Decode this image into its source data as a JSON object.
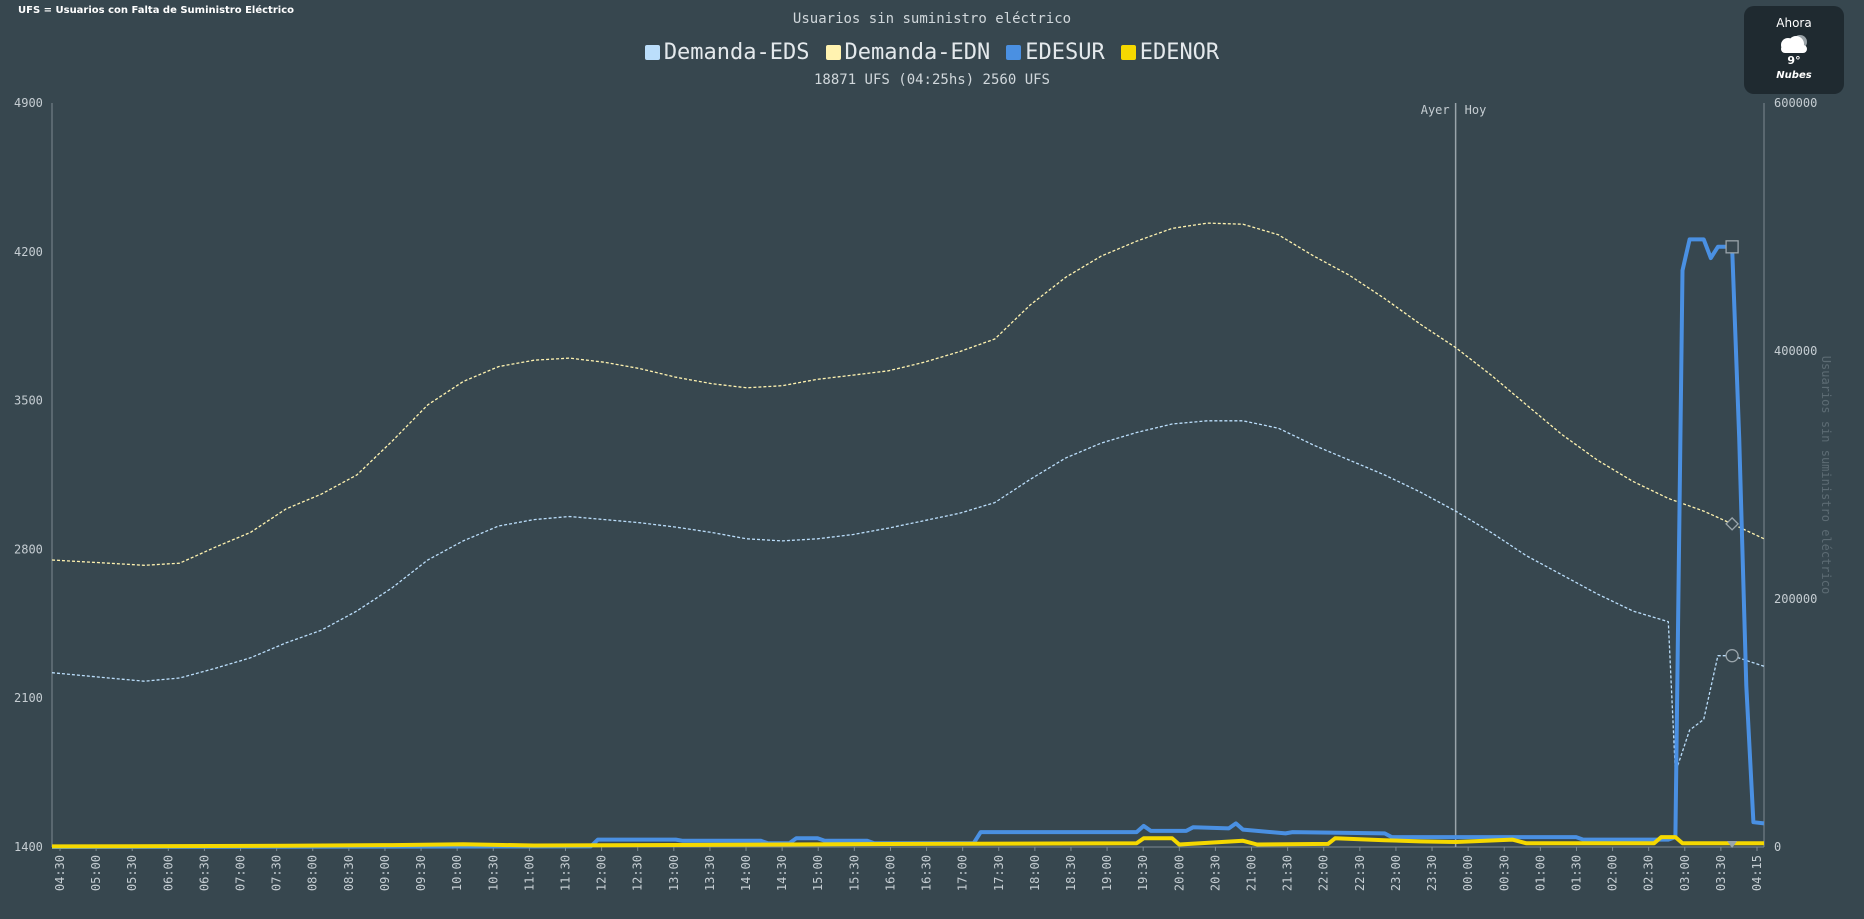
{
  "header": {
    "corner_note": "UFS = Usuarios con Falta de Suministro Eléctrico",
    "title": "Usuarios sin suministro eléctrico",
    "subtitle": "18871 UFS (04:25hs) 2560 UFS"
  },
  "legend": [
    {
      "label": "Demanda-EDS",
      "color": "#bbdefb"
    },
    {
      "label": "Demanda-EDN",
      "color": "#fff3b0"
    },
    {
      "label": "EDESUR",
      "color": "#4a90e2"
    },
    {
      "label": "EDENOR",
      "color": "#f5d800"
    }
  ],
  "weather": {
    "label": "Ahora",
    "icon": "cloud-icon",
    "temp": "9°",
    "desc": "Nubes"
  },
  "chart_data": {
    "type": "line",
    "title": "Usuarios sin suministro eléctrico",
    "subtitle": "18871 UFS (04:25hs) 2560 UFS",
    "x_ticks": [
      "04:30",
      "05:00",
      "05:30",
      "06:00",
      "06:30",
      "07:00",
      "07:30",
      "08:00",
      "08:30",
      "09:00",
      "09:30",
      "10:00",
      "10:30",
      "11:00",
      "11:30",
      "12:00",
      "12:30",
      "13:00",
      "13:30",
      "14:00",
      "14:30",
      "15:00",
      "15:30",
      "16:00",
      "16:30",
      "17:00",
      "17:30",
      "18:00",
      "18:30",
      "19:00",
      "19:30",
      "20:00",
      "20:30",
      "21:00",
      "21:30",
      "22:00",
      "22:30",
      "23:00",
      "23:30",
      "00:00",
      "00:30",
      "01:00",
      "01:30",
      "02:00",
      "02:30",
      "03:00",
      "03:30",
      "04:15"
    ],
    "x_range_hours": [
      4.2,
      28.35
    ],
    "left_axis": {
      "ticks": [
        1400,
        2100,
        2800,
        3500,
        4200,
        4900
      ],
      "range": [
        1400,
        4900
      ],
      "label": ""
    },
    "right_axis": {
      "ticks": [
        0,
        200000,
        400000,
        600000
      ],
      "range": [
        0,
        600000
      ],
      "label": "Usuarios sin suministro eléctrico"
    },
    "day_marker": {
      "x_hours": 24.0,
      "left_label": "Ayer",
      "right_label": "Hoy"
    },
    "grid": false,
    "legend_position": "top-center",
    "series": [
      {
        "name": "Demanda-EDN",
        "axis": "left",
        "style": "dashed",
        "color": "#fff3b0",
        "points": [
          [
            4.2,
            2750
          ],
          [
            5.0,
            2735
          ],
          [
            5.5,
            2725
          ],
          [
            6.0,
            2735
          ],
          [
            6.5,
            2810
          ],
          [
            7.0,
            2880
          ],
          [
            7.5,
            2990
          ],
          [
            8.0,
            3060
          ],
          [
            8.5,
            3150
          ],
          [
            9.0,
            3310
          ],
          [
            9.5,
            3480
          ],
          [
            10.0,
            3590
          ],
          [
            10.5,
            3660
          ],
          [
            11.0,
            3690
          ],
          [
            11.5,
            3700
          ],
          [
            12.0,
            3680
          ],
          [
            12.5,
            3650
          ],
          [
            13.0,
            3610
          ],
          [
            13.5,
            3580
          ],
          [
            14.0,
            3560
          ],
          [
            14.5,
            3570
          ],
          [
            15.0,
            3600
          ],
          [
            15.5,
            3620
          ],
          [
            16.0,
            3640
          ],
          [
            16.5,
            3680
          ],
          [
            17.0,
            3730
          ],
          [
            17.5,
            3790
          ],
          [
            18.0,
            3950
          ],
          [
            18.5,
            4080
          ],
          [
            19.0,
            4180
          ],
          [
            19.5,
            4250
          ],
          [
            20.0,
            4310
          ],
          [
            20.5,
            4335
          ],
          [
            21.0,
            4330
          ],
          [
            21.5,
            4280
          ],
          [
            22.0,
            4180
          ],
          [
            22.5,
            4090
          ],
          [
            23.0,
            3980
          ],
          [
            23.5,
            3860
          ],
          [
            24.0,
            3750
          ],
          [
            24.5,
            3620
          ],
          [
            25.0,
            3480
          ],
          [
            25.5,
            3340
          ],
          [
            26.0,
            3220
          ],
          [
            26.5,
            3120
          ],
          [
            27.0,
            3040
          ],
          [
            27.5,
            2980
          ],
          [
            27.9,
            2920
          ],
          [
            28.35,
            2850
          ]
        ]
      },
      {
        "name": "Demanda-EDS",
        "axis": "left",
        "style": "dashed",
        "color": "#bbdefb",
        "points": [
          [
            4.2,
            2220
          ],
          [
            5.0,
            2195
          ],
          [
            5.5,
            2180
          ],
          [
            6.0,
            2195
          ],
          [
            6.5,
            2240
          ],
          [
            7.0,
            2290
          ],
          [
            7.5,
            2360
          ],
          [
            8.0,
            2420
          ],
          [
            8.5,
            2510
          ],
          [
            9.0,
            2620
          ],
          [
            9.5,
            2750
          ],
          [
            10.0,
            2840
          ],
          [
            10.5,
            2910
          ],
          [
            11.0,
            2940
          ],
          [
            11.5,
            2955
          ],
          [
            12.0,
            2940
          ],
          [
            12.5,
            2925
          ],
          [
            13.0,
            2905
          ],
          [
            13.5,
            2880
          ],
          [
            14.0,
            2850
          ],
          [
            14.5,
            2840
          ],
          [
            15.0,
            2850
          ],
          [
            15.5,
            2870
          ],
          [
            16.0,
            2900
          ],
          [
            16.5,
            2935
          ],
          [
            17.0,
            2970
          ],
          [
            17.5,
            3020
          ],
          [
            18.0,
            3130
          ],
          [
            18.5,
            3230
          ],
          [
            19.0,
            3300
          ],
          [
            19.5,
            3350
          ],
          [
            20.0,
            3390
          ],
          [
            20.5,
            3405
          ],
          [
            21.0,
            3405
          ],
          [
            21.5,
            3370
          ],
          [
            22.0,
            3290
          ],
          [
            22.5,
            3220
          ],
          [
            23.0,
            3150
          ],
          [
            23.5,
            3070
          ],
          [
            24.0,
            2980
          ],
          [
            24.5,
            2880
          ],
          [
            25.0,
            2770
          ],
          [
            25.5,
            2680
          ],
          [
            26.0,
            2590
          ],
          [
            26.5,
            2510
          ],
          [
            27.0,
            2460
          ],
          [
            27.1,
            1750
          ],
          [
            27.3,
            1950
          ],
          [
            27.5,
            2000
          ],
          [
            27.7,
            2300
          ],
          [
            27.9,
            2300
          ],
          [
            28.35,
            2250
          ]
        ]
      },
      {
        "name": "EDESUR",
        "axis": "right",
        "style": "solid",
        "color": "#4a90e2",
        "points": [
          [
            4.2,
            0
          ],
          [
            11.8,
            500
          ],
          [
            11.9,
            6000
          ],
          [
            13.0,
            6000
          ],
          [
            13.1,
            5000
          ],
          [
            14.2,
            5000
          ],
          [
            14.3,
            3000
          ],
          [
            14.6,
            3000
          ],
          [
            14.7,
            7000
          ],
          [
            15.0,
            7000
          ],
          [
            15.1,
            5000
          ],
          [
            15.7,
            5000
          ],
          [
            15.8,
            3000
          ],
          [
            17.2,
            3000
          ],
          [
            17.3,
            12000
          ],
          [
            19.5,
            12000
          ],
          [
            19.6,
            17000
          ],
          [
            19.7,
            13000
          ],
          [
            20.2,
            13000
          ],
          [
            20.3,
            16000
          ],
          [
            20.8,
            15000
          ],
          [
            20.9,
            19000
          ],
          [
            21.0,
            14000
          ],
          [
            21.6,
            11000
          ],
          [
            21.7,
            12000
          ],
          [
            23.0,
            11000
          ],
          [
            23.1,
            8000
          ],
          [
            25.7,
            8000
          ],
          [
            25.8,
            6000
          ],
          [
            27.0,
            6000
          ],
          [
            27.1,
            8000
          ],
          [
            27.2,
            465000
          ],
          [
            27.3,
            490000
          ],
          [
            27.5,
            490000
          ],
          [
            27.6,
            475000
          ],
          [
            27.7,
            484000
          ],
          [
            27.9,
            484000
          ],
          [
            28.0,
            330000
          ],
          [
            28.1,
            130000
          ],
          [
            28.2,
            20000
          ],
          [
            28.35,
            19000
          ]
        ]
      },
      {
        "name": "EDENOR",
        "axis": "right",
        "style": "solid",
        "color": "#f5d800",
        "points": [
          [
            4.2,
            500
          ],
          [
            7.5,
            1000
          ],
          [
            9.0,
            1500
          ],
          [
            10.0,
            2200
          ],
          [
            11.0,
            1200
          ],
          [
            12.5,
            1500
          ],
          [
            16.5,
            2500
          ],
          [
            19.5,
            3000
          ],
          [
            19.6,
            7000
          ],
          [
            20.0,
            7000
          ],
          [
            20.1,
            2000
          ],
          [
            21.0,
            5000
          ],
          [
            21.2,
            2000
          ],
          [
            22.2,
            2500
          ],
          [
            22.3,
            7000
          ],
          [
            23.0,
            5500
          ],
          [
            23.5,
            4500
          ],
          [
            24.0,
            4000
          ],
          [
            24.8,
            6000
          ],
          [
            25.0,
            3000
          ],
          [
            26.8,
            3000
          ],
          [
            26.9,
            8000
          ],
          [
            27.1,
            8000
          ],
          [
            27.2,
            3000
          ],
          [
            28.35,
            3000
          ]
        ]
      }
    ]
  }
}
